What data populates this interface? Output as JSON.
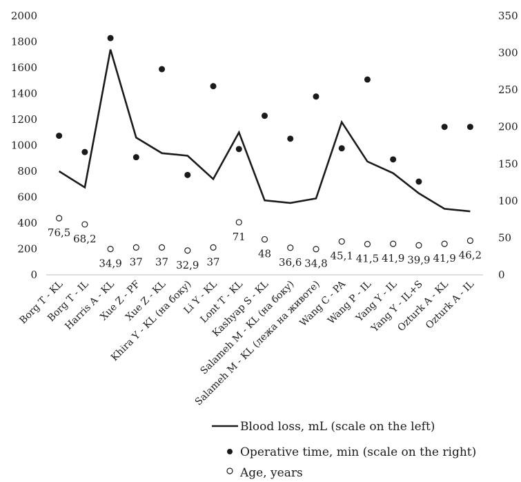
{
  "chart_data": {
    "type": "line",
    "title": "",
    "categories": [
      "Borg T - KL",
      "Borg T - IL",
      "Harris A - KL",
      "Xue Z - PF",
      "Xue Z - KL",
      "Khira Y - KL (на боку)",
      "Li Y - KL",
      "Lont T - KL",
      "Kashyap S - KL",
      "Salameh M - KL (на боку)",
      "Salameh M - KL (лежа на животе)",
      "Wang C - PA",
      "Wang P - IL",
      "Yang Y - IL",
      "Yang Y - IL+S",
      "Ozturk A - KL",
      "Ozturk A - IL"
    ],
    "y_left": {
      "ylim": [
        0,
        2000
      ],
      "ticks": [
        "0",
        "200",
        "400",
        "600",
        "800",
        "1000",
        "1200",
        "1400",
        "1600",
        "1800",
        "2000"
      ]
    },
    "y_right": {
      "ylim": [
        0,
        350
      ],
      "ticks": [
        "0",
        "50",
        "100",
        "150",
        "200",
        "250",
        "300",
        "350"
      ]
    },
    "grid": false,
    "legend_position": "bottom-right",
    "series": [
      {
        "name": "Blood loss, mL (scale on the left)",
        "kind": "line",
        "axis": "left",
        "color": "#1a1a1a",
        "values": [
          800,
          675,
          1740,
          1060,
          940,
          920,
          740,
          1100,
          575,
          555,
          590,
          1180,
          875,
          785,
          630,
          510,
          490
        ]
      },
      {
        "name": "Operative time, min (scale on the right)",
        "kind": "scatter-filled",
        "axis": "right",
        "color": "#1a1a1a",
        "values": [
          188,
          166,
          320,
          159,
          278,
          135,
          255,
          170,
          215,
          184,
          241,
          171,
          264,
          156,
          126,
          200,
          200
        ]
      },
      {
        "name": "Age, years",
        "kind": "scatter-hollow",
        "axis": "right",
        "color": "#1a1a1a",
        "values": [
          76.5,
          68.2,
          34.9,
          37,
          37,
          32.9,
          37,
          71,
          48,
          36.6,
          34.8,
          45.1,
          41.5,
          41.9,
          39.9,
          41.9,
          46.2
        ],
        "data_labels": [
          "76,5",
          "68,2",
          "34,9",
          "37",
          "37",
          "32,9",
          "37",
          "71",
          "48",
          "36,6",
          "34,8",
          "45,1",
          "41,5",
          "41,9",
          "39,9",
          "41,9",
          "46,2"
        ]
      }
    ]
  }
}
